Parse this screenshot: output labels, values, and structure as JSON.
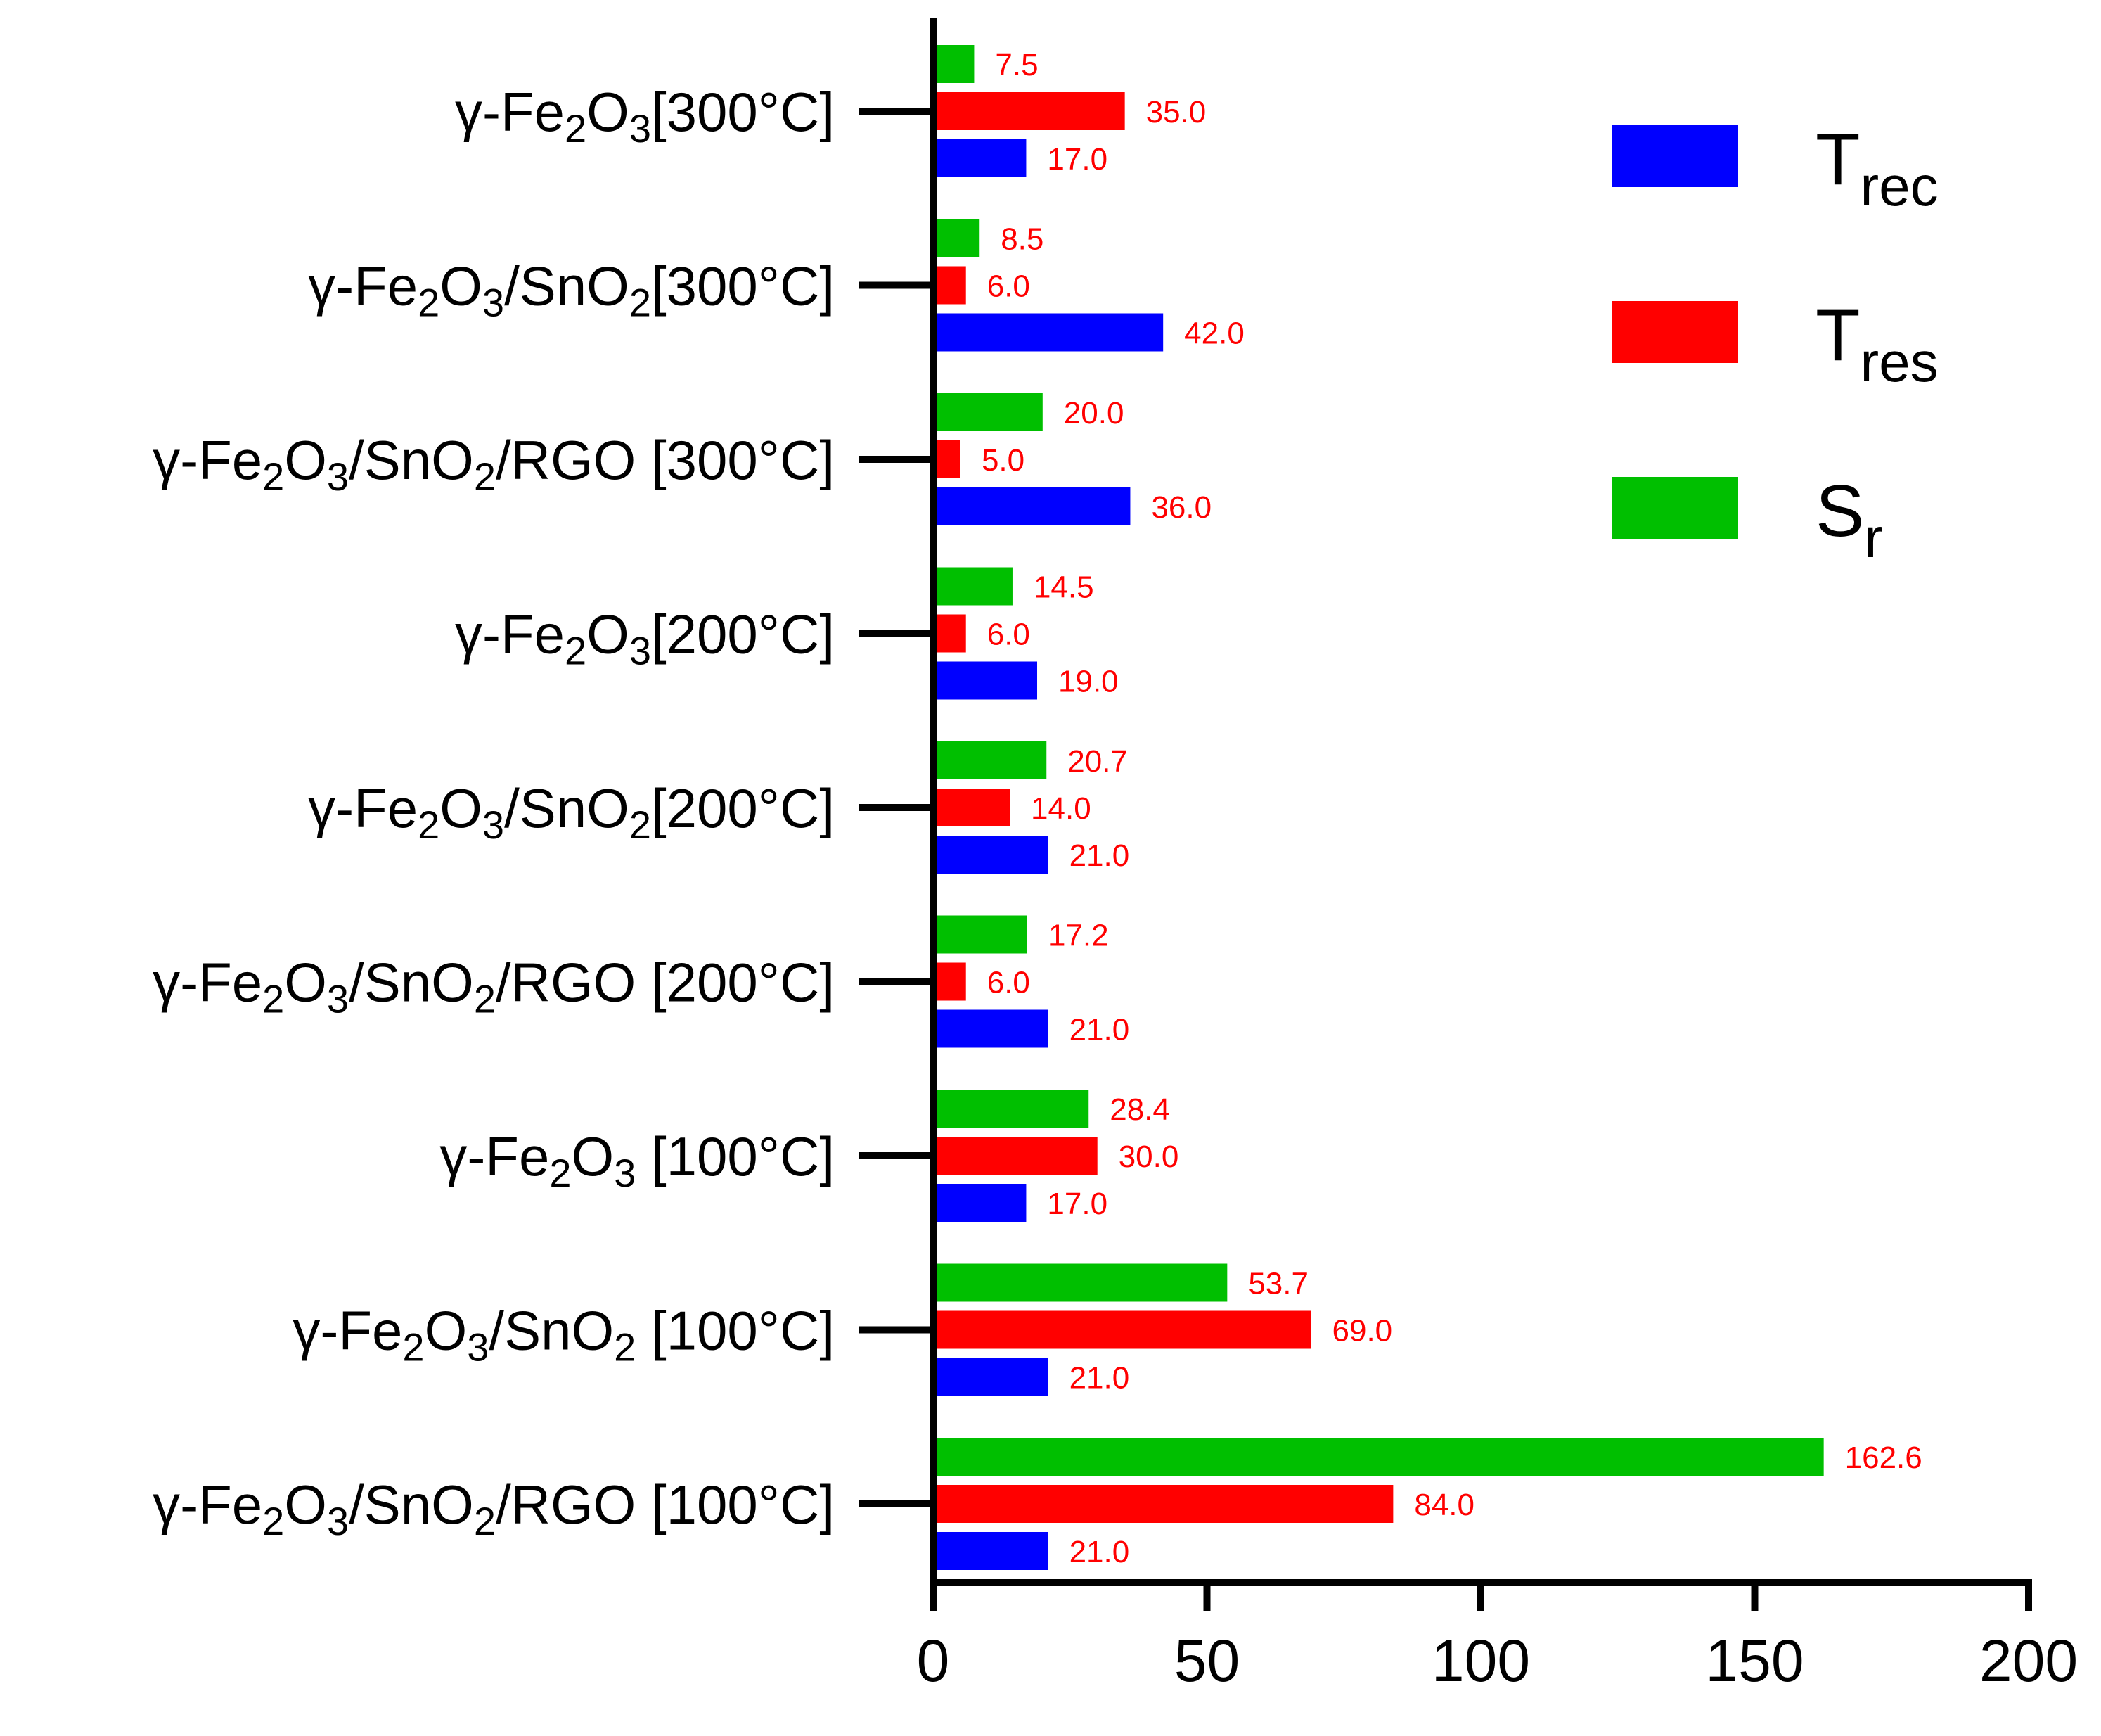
{
  "chart_data": {
    "type": "bar",
    "orientation": "horizontal",
    "title": "",
    "xlabel": "",
    "ylabel": "",
    "xlim": [
      0,
      200
    ],
    "x_ticks": [
      "0",
      "50",
      "100",
      "150",
      "200"
    ],
    "grid": false,
    "legend_position": "top-right",
    "categories": [
      {
        "prefix": "γ-Fe",
        "s1": "2",
        "mid1": "O",
        "s2": "3",
        "rest": "[300°C]"
      },
      {
        "prefix": "γ-Fe",
        "s1": "2",
        "mid1": "O",
        "s2": "3",
        "mid2": "/SnO",
        "s3": "2",
        "rest": "[300°C]"
      },
      {
        "prefix": "γ-Fe",
        "s1": "2",
        "mid1": "O",
        "s2": "3",
        "mid2": "/SnO",
        "s3": "2",
        "rest": "/RGO [300°C]"
      },
      {
        "prefix": "γ-Fe",
        "s1": "2",
        "mid1": "O",
        "s2": "3",
        "rest": "[200°C]"
      },
      {
        "prefix": "γ-Fe",
        "s1": "2",
        "mid1": "O",
        "s2": "3",
        "mid2": "/SnO",
        "s3": "2",
        "rest": "[200°C]"
      },
      {
        "prefix": "γ-Fe",
        "s1": "2",
        "mid1": "O",
        "s2": "3",
        "mid2": "/SnO",
        "s3": "2",
        "rest": "/RGO [200°C]"
      },
      {
        "prefix": "γ-Fe",
        "s1": "2",
        "mid1": "O",
        "s2": "3",
        "rest": " [100°C]"
      },
      {
        "prefix": "γ-Fe",
        "s1": "2",
        "mid1": "O",
        "s2": "3",
        "mid2": "/SnO",
        "s3": "2",
        "rest": " [100°C]"
      },
      {
        "prefix": "γ-Fe",
        "s1": "2",
        "mid1": "O",
        "s2": "3",
        "mid2": "/SnO",
        "s3": "2",
        "rest": "/RGO [100°C]"
      }
    ],
    "series": [
      {
        "name": "T",
        "sub": "rec",
        "color": "#0000ff",
        "values": [
          17.0,
          42.0,
          36.0,
          19.0,
          21.0,
          21.0,
          17.0,
          21.0,
          21.0
        ],
        "labels": [
          "17.0",
          "42.0",
          "36.0",
          "19.0",
          "21.0",
          "21.0",
          "17.0",
          "21.0",
          "21.0"
        ]
      },
      {
        "name": "T",
        "sub": "res",
        "color": "#ff0000",
        "values": [
          35.0,
          6.0,
          5.0,
          6.0,
          14.0,
          6.0,
          30.0,
          69.0,
          84.0
        ],
        "labels": [
          "35.0",
          "6.0",
          "5.0",
          "6.0",
          "14.0",
          "6.0",
          "30.0",
          "69.0",
          "84.0"
        ]
      },
      {
        "name": "S",
        "sub": "r",
        "color": "#00bf00",
        "values": [
          7.5,
          8.5,
          20.0,
          14.5,
          20.7,
          17.2,
          28.4,
          53.7,
          162.6
        ],
        "labels": [
          "7.5",
          "8.5",
          "20.0",
          "14.5",
          "20.7",
          "17.2",
          "28.4",
          "53.7",
          "162.6"
        ]
      }
    ],
    "data_label_color": "#ff0000"
  }
}
